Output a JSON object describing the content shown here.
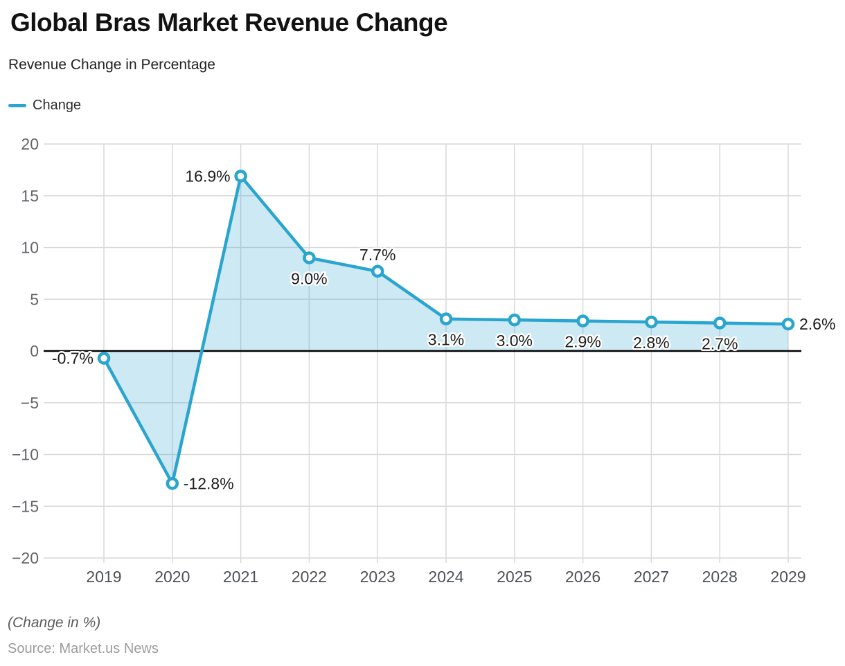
{
  "header": {
    "title": "Global Bras Market Revenue Change",
    "subtitle": "Revenue Change in Percentage",
    "legend": [
      {
        "label": "Change",
        "color": "#29A5CF"
      }
    ]
  },
  "footer": {
    "note": "(Change in %)",
    "source": "Source: Market.us News"
  },
  "chart_data": {
    "type": "area",
    "title": "Global Bras Market Revenue Change",
    "subtitle": "Revenue Change in Percentage",
    "categories": [
      "2019",
      "2020",
      "2021",
      "2022",
      "2023",
      "2024",
      "2025",
      "2026",
      "2027",
      "2028",
      "2029"
    ],
    "series": [
      {
        "name": "Change",
        "values": [
          -0.7,
          -12.8,
          16.9,
          9.0,
          7.7,
          3.1,
          3.0,
          2.9,
          2.8,
          2.7,
          2.6
        ]
      }
    ],
    "point_labels": [
      "-0.7%",
      "-12.8%",
      "16.9%",
      "9.0%",
      "7.7%",
      "3.1%",
      "3.0%",
      "2.9%",
      "2.8%",
      "2.7%",
      "2.6%"
    ],
    "label_placement": [
      "left",
      "right",
      "left",
      "below",
      "above",
      "below",
      "below",
      "below",
      "below",
      "below",
      "right"
    ],
    "xlabel": "",
    "ylabel": "",
    "ylim": [
      -20,
      20
    ],
    "ytick_step": 5,
    "grid": true,
    "zero_baseline": true,
    "legend_position": "top-left",
    "colors": {
      "line": "#29A5CF",
      "fill": "rgba(41, 165, 207, 0.24)",
      "grid": "#D9D9D9",
      "zero_line": "#000000",
      "x_tick": "#4D5156",
      "y_tick": "#63666A",
      "point_label": "#1C1C1C",
      "label_halo": "#FFFFFF"
    }
  }
}
